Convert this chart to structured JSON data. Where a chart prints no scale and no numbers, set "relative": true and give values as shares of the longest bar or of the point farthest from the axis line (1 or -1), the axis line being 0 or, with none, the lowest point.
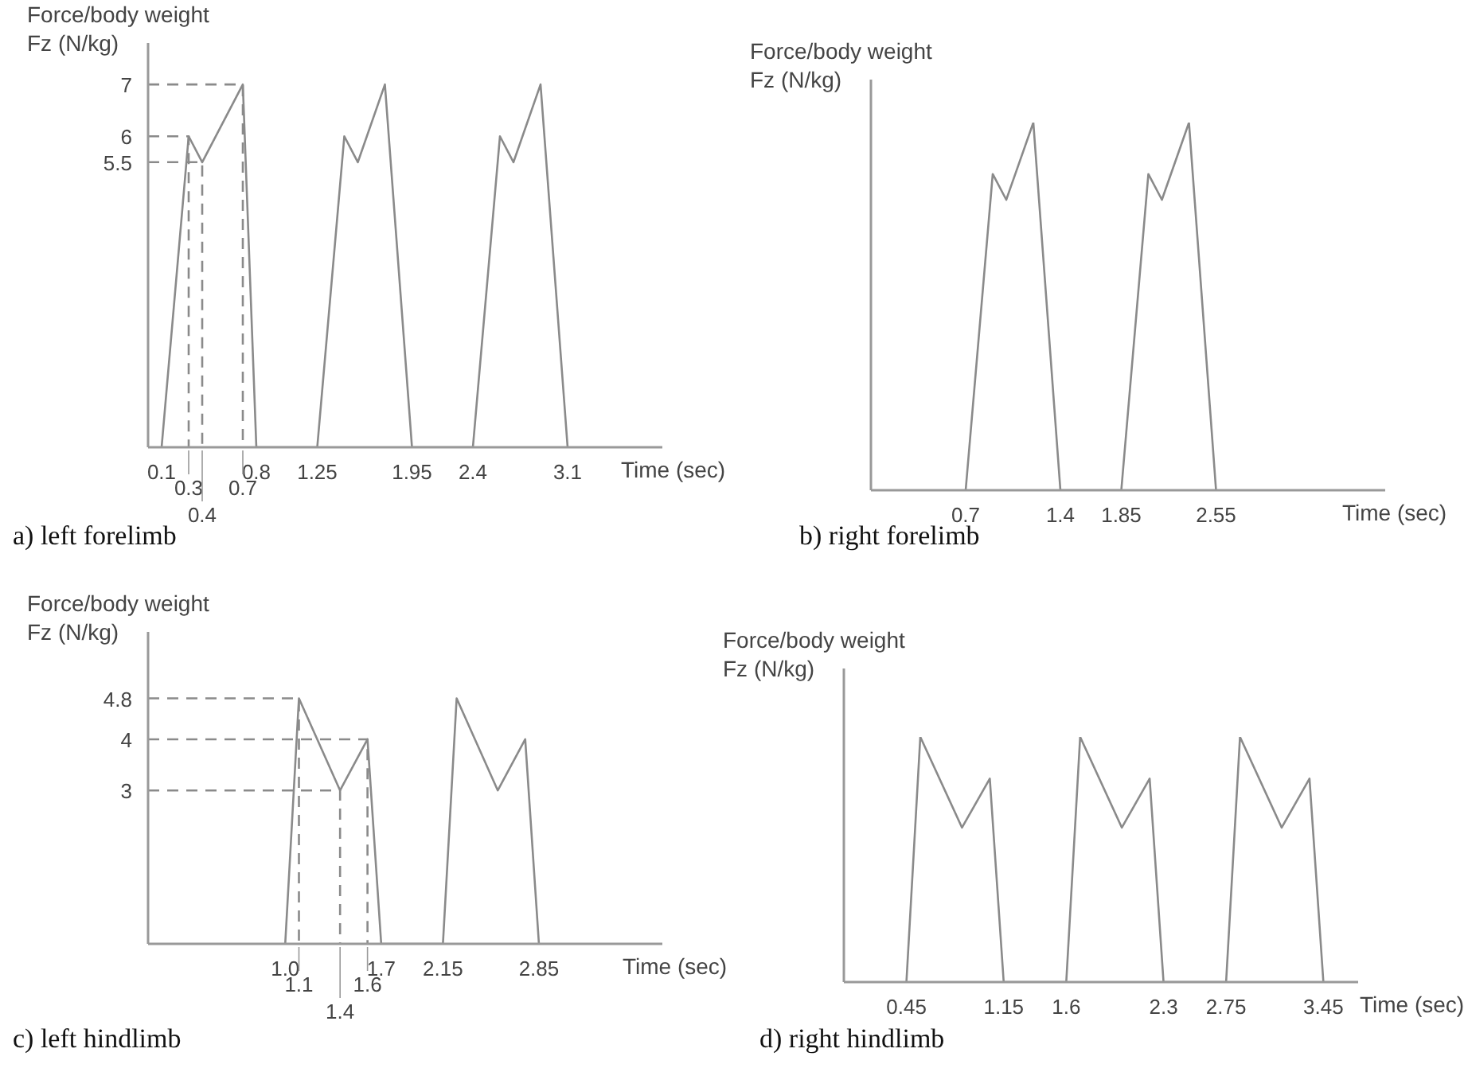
{
  "chart_data": [
    {
      "type": "line",
      "title": "a) left forelimb",
      "xlabel": "Time (sec)",
      "ylabel": "Force/body weight\nFz (N/kg)",
      "xlim": [
        0,
        3.8
      ],
      "xticks": [
        0.1,
        0.8,
        1.25,
        1.95,
        2.4,
        3.1
      ],
      "annotations": [
        {
          "text": "0.3",
          "x": 0.3,
          "y": 0
        },
        {
          "text": "0.7",
          "x": 0.7,
          "y": 0
        },
        {
          "text": "0.4",
          "x": 0.4,
          "y": 0
        }
      ],
      "ylim": [
        0,
        7.8
      ],
      "yticks": [
        5.5,
        6,
        7
      ],
      "series": [
        {
          "color": "#8a8a8a",
          "x": [
            0.1,
            0.3,
            0.4,
            0.7,
            0.8,
            1.25,
            1.45,
            1.55,
            1.75,
            1.95,
            2.4,
            2.6,
            2.7,
            2.9,
            3.1
          ],
          "values": [
            0,
            6,
            5.5,
            7,
            0,
            0,
            6,
            5.5,
            7,
            0,
            0,
            6,
            5.5,
            7,
            0
          ]
        },
        {
          "type": "line",
          "line_style": "dashed",
          "color": "#8a8a8a",
          "x": [
            0,
            0.3,
            0.3
          ],
          "values": [
            6,
            6,
            0
          ]
        },
        {
          "type": "line",
          "line_style": "dashed",
          "color": "#8a8a8a",
          "x": [
            0,
            0.4,
            0.4
          ],
          "values": [
            5.5,
            5.5,
            0
          ]
        },
        {
          "type": "line",
          "line_style": "dashed",
          "color": "#8a8a8a",
          "x": [
            0,
            0.7,
            0.7
          ],
          "values": [
            7,
            7,
            0
          ]
        }
      ]
    },
    {
      "type": "line",
      "title": "b) right forelimb",
      "xlabel": "Time (sec)",
      "ylabel": "Force/body weight\nFz (N/kg)",
      "relative": true,
      "xlim": [
        0,
        3.8
      ],
      "xticks": [
        0.7,
        1.4,
        1.85,
        2.55
      ],
      "series": [
        {
          "color": "#8a8a8a",
          "x": [
            0.7,
            0.9,
            1.0,
            1.2,
            1.4,
            1.85,
            2.05,
            2.15,
            2.35,
            2.55
          ],
          "values": [
            0,
            0.86,
            0.79,
            1,
            0,
            0,
            0.86,
            0.79,
            1,
            0
          ]
        }
      ]
    },
    {
      "type": "line",
      "title": "c) left hindlimb",
      "xlabel": "Time (sec)",
      "ylabel": "Force/body weight\nFz (N/kg)",
      "xlim": [
        0,
        3.75
      ],
      "xticks": [
        {
          "value": 1,
          "label": "1.0"
        },
        1.7,
        2.15,
        2.85
      ],
      "annotations": [
        {
          "text": "1.1",
          "x": 1.1,
          "y": 0
        },
        {
          "text": "1.6",
          "x": 1.6,
          "y": 0
        },
        {
          "text": "1.4",
          "x": 1.4,
          "y": 0
        }
      ],
      "ylim": [
        0,
        6.1
      ],
      "yticks": [
        3,
        4,
        4.8
      ],
      "series": [
        {
          "color": "#8a8a8a",
          "x": [
            1,
            1.1,
            1.4,
            1.6,
            1.7,
            2.15,
            2.25,
            2.55,
            2.75,
            2.85
          ],
          "values": [
            0,
            4.8,
            3,
            4,
            0,
            0,
            4.8,
            3,
            4,
            0
          ]
        },
        {
          "type": "line",
          "line_style": "dashed",
          "color": "#8a8a8a",
          "x": [
            0,
            1.1,
            1.1
          ],
          "values": [
            4.8,
            4.8,
            0
          ]
        },
        {
          "type": "line",
          "line_style": "dashed",
          "color": "#8a8a8a",
          "x": [
            0,
            1.6,
            1.6
          ],
          "values": [
            4,
            4,
            0
          ]
        },
        {
          "type": "line",
          "line_style": "dashed",
          "color": "#8a8a8a",
          "x": [
            0,
            1.4,
            1.4
          ],
          "values": [
            3,
            3,
            0
          ]
        }
      ]
    },
    {
      "type": "line",
      "title": "d) right hindlimb",
      "xlabel": "Time (sec)",
      "ylabel": "Force/body weight\nFz (N/kg)",
      "relative": true,
      "xlim": [
        0,
        3.7
      ],
      "xticks": [
        0.45,
        1.15,
        1.6,
        2.3,
        2.75,
        3.45
      ],
      "series": [
        {
          "color": "#8a8a8a",
          "x": [
            0.45,
            0.55,
            0.85,
            1.05,
            1.15,
            1.6,
            1.7,
            2.0,
            2.2,
            2.3,
            2.75,
            2.85,
            3.15,
            3.35,
            3.45
          ],
          "values": [
            0,
            1,
            0.63,
            0.83,
            0,
            0,
            1,
            0.63,
            0.83,
            0,
            0,
            1,
            0.63,
            0.83,
            0
          ]
        }
      ]
    }
  ]
}
